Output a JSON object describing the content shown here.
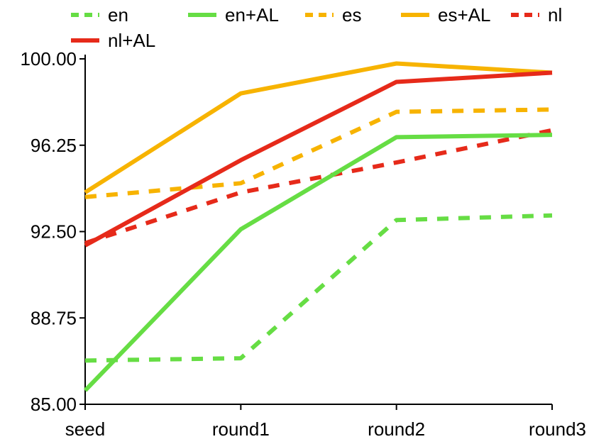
{
  "chart_data": {
    "type": "line",
    "title": "",
    "xlabel": "",
    "ylabel": "",
    "categories": [
      "seed",
      "round1",
      "round2",
      "round3"
    ],
    "ylim": [
      85.0,
      100.0
    ],
    "yticks": [
      "85.00",
      "88.75",
      "92.50",
      "96.25",
      "100.00"
    ],
    "grid": false,
    "legend_position": "top",
    "series": [
      {
        "name": "en",
        "color": "#66dd44",
        "dashed": true,
        "values": [
          86.9,
          87.0,
          93.0,
          93.2
        ]
      },
      {
        "name": "en+AL",
        "color": "#66dd44",
        "dashed": false,
        "values": [
          85.6,
          92.6,
          96.6,
          96.7
        ]
      },
      {
        "name": "es",
        "color": "#f7b300",
        "dashed": true,
        "values": [
          94.0,
          94.6,
          97.7,
          97.8
        ]
      },
      {
        "name": "es+AL",
        "color": "#f7b300",
        "dashed": false,
        "values": [
          94.2,
          98.5,
          99.8,
          99.4
        ]
      },
      {
        "name": "nl",
        "color": "#e62a1a",
        "dashed": true,
        "values": [
          92.0,
          94.2,
          95.5,
          96.9
        ]
      },
      {
        "name": "nl+AL",
        "color": "#e62a1a",
        "dashed": false,
        "values": [
          91.9,
          95.6,
          99.0,
          99.4
        ]
      }
    ]
  }
}
